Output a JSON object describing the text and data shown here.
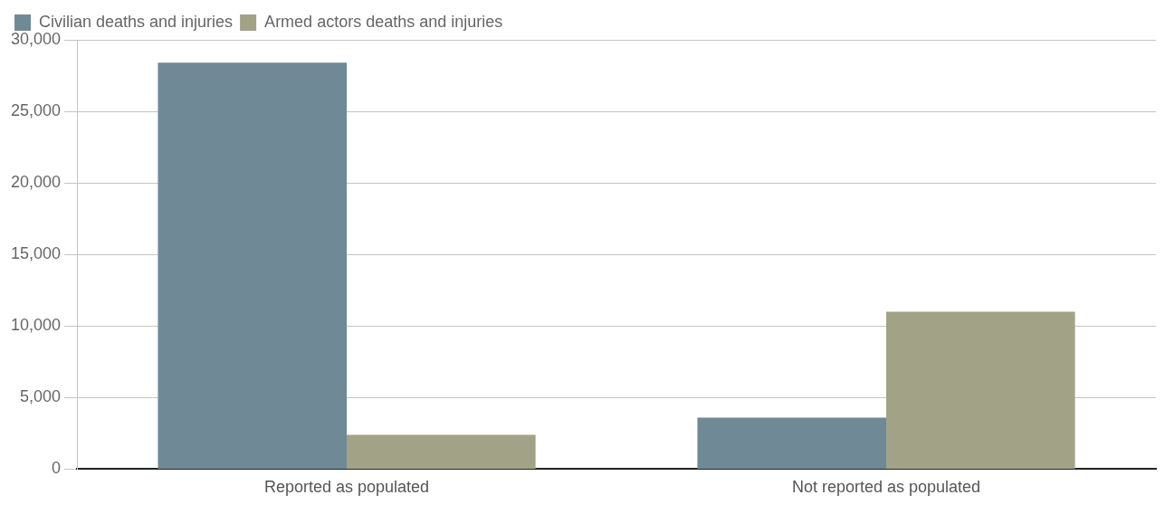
{
  "chart_data": {
    "type": "bar",
    "categories": [
      "Reported as populated",
      "Not reported as populated"
    ],
    "series": [
      {
        "name": "Civilian deaths and injuries",
        "color": "#6f8a96",
        "values": [
          28400,
          3600
        ]
      },
      {
        "name": "Armed actors deaths and injuries",
        "color": "#a2a286",
        "values": [
          2400,
          11000
        ]
      }
    ],
    "ylim": [
      0,
      30000
    ],
    "yticks": [
      {
        "value": 0,
        "label": "0"
      },
      {
        "value": 5000,
        "label": "5,000"
      },
      {
        "value": 10000,
        "label": "10,000"
      },
      {
        "value": 15000,
        "label": "15,000"
      },
      {
        "value": 20000,
        "label": "20,000"
      },
      {
        "value": 25000,
        "label": "25,000"
      },
      {
        "value": 30000,
        "label": "30,000"
      }
    ],
    "grid": "y",
    "legend": "top left"
  }
}
